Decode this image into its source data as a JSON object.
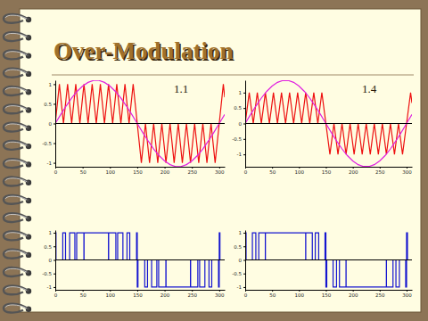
{
  "title": "Over-Modulation",
  "chart_data": [
    {
      "type": "line",
      "annotation": "1.1",
      "xlim": [
        0,
        310
      ],
      "ylim": [
        -1.1,
        1.1
      ],
      "xticks": [
        0,
        50,
        100,
        150,
        200,
        250,
        300
      ],
      "yticks": [
        -1,
        -0.5,
        0,
        0.5,
        1
      ],
      "series": [
        {
          "color": "#ee1010",
          "x": [
            0,
            7.5,
            15,
            22.5,
            30,
            37.5,
            45,
            52.5,
            60,
            67.5,
            75,
            82.5,
            90,
            97.5,
            105,
            112.5,
            120,
            127.5,
            135,
            142.5,
            150,
            157.5,
            165,
            172.5,
            180,
            187.5,
            195,
            202.5,
            210,
            217.5,
            225,
            232.5,
            240,
            247.5,
            255,
            262.5,
            270,
            277.5,
            285,
            292.5,
            300,
            307.5,
            310
          ],
          "values": [
            0,
            1,
            0,
            1,
            0,
            1,
            0,
            1,
            0,
            1,
            0,
            1,
            0,
            1,
            0,
            1,
            0,
            1,
            0,
            1,
            0,
            -1,
            0,
            -1,
            0,
            -1,
            0,
            -1,
            0,
            -1,
            0,
            -1,
            0,
            -1,
            0,
            -1,
            0,
            -1,
            0,
            -1,
            0,
            1,
            0.667
          ]
        },
        {
          "color": "#e020e0",
          "x": [
            0,
            10,
            20,
            30,
            40,
            50,
            60,
            70,
            80,
            90,
            100,
            110,
            120,
            130,
            140,
            150,
            160,
            170,
            180,
            190,
            200,
            210,
            220,
            230,
            240,
            250,
            260,
            270,
            280,
            290,
            300,
            310
          ],
          "values": [
            0,
            0.229,
            0.447,
            0.647,
            0.817,
            0.953,
            1.046,
            1.094,
            1.094,
            1.046,
            0.953,
            0.817,
            0.647,
            0.447,
            0.229,
            0,
            -0.229,
            -0.447,
            -0.647,
            -0.817,
            -0.953,
            -1.046,
            -1.094,
            -1.094,
            -1.046,
            -0.953,
            -0.817,
            -0.647,
            -0.447,
            -0.229,
            0,
            0.229
          ]
        }
      ]
    },
    {
      "type": "line",
      "annotation": "1.4",
      "xlim": [
        0,
        310
      ],
      "ylim": [
        -1.4,
        1.4
      ],
      "xticks": [
        0,
        50,
        100,
        150,
        200,
        250,
        300
      ],
      "yticks": [
        -1,
        -0.5,
        0,
        0.5,
        1
      ],
      "series": [
        {
          "color": "#ee1010",
          "x": [
            0,
            7.5,
            15,
            22.5,
            30,
            37.5,
            45,
            52.5,
            60,
            67.5,
            75,
            82.5,
            90,
            97.5,
            105,
            112.5,
            120,
            127.5,
            135,
            142.5,
            150,
            157.5,
            165,
            172.5,
            180,
            187.5,
            195,
            202.5,
            210,
            217.5,
            225,
            232.5,
            240,
            247.5,
            255,
            262.5,
            270,
            277.5,
            285,
            292.5,
            300,
            307.5,
            310
          ],
          "values": [
            0,
            1,
            0,
            1,
            0,
            1,
            0,
            1,
            0,
            1,
            0,
            1,
            0,
            1,
            0,
            1,
            0,
            1,
            0,
            1,
            0,
            -1,
            0,
            -1,
            0,
            -1,
            0,
            -1,
            0,
            -1,
            0,
            -1,
            0,
            -1,
            0,
            -1,
            0,
            -1,
            0,
            -1,
            0,
            1,
            0.667
          ]
        },
        {
          "color": "#e020e0",
          "x": [
            0,
            10,
            20,
            30,
            40,
            50,
            60,
            70,
            80,
            90,
            100,
            110,
            120,
            130,
            140,
            150,
            160,
            170,
            180,
            190,
            200,
            210,
            220,
            230,
            240,
            250,
            260,
            270,
            280,
            290,
            300,
            310
          ],
          "values": [
            0,
            0.291,
            0.569,
            0.823,
            1.04,
            1.212,
            1.332,
            1.392,
            1.392,
            1.332,
            1.212,
            1.04,
            0.823,
            0.569,
            0.291,
            0,
            -0.291,
            -0.569,
            -0.823,
            -1.04,
            -1.212,
            -1.332,
            -1.392,
            -1.392,
            -1.332,
            -1.212,
            -1.04,
            -0.823,
            -0.569,
            -0.291,
            0,
            0.291
          ]
        }
      ]
    },
    {
      "type": "line",
      "xlim": [
        0,
        310
      ],
      "ylim": [
        -1.1,
        1.1
      ],
      "xticks": [
        0,
        50,
        100,
        150,
        200,
        250,
        300
      ],
      "yticks": [
        -1,
        -0.5,
        0,
        0.5,
        1
      ],
      "series": [
        {
          "color": "#1414d0",
          "line_style": "step",
          "x": [
            0,
            1.29,
            13.71,
            18.74,
            26.26,
            35.83,
            39.17,
            52.35,
            52.65,
            97.35,
            97.65,
            110.83,
            114.17,
            123.74,
            131.26,
            136.29,
            148.71,
            150,
            151.29,
            163.71,
            168.74,
            176.26,
            185.83,
            189.17,
            202.35,
            202.65,
            247.35,
            247.65,
            260.83,
            264.17,
            273.74,
            281.26,
            286.29,
            298.71,
            300,
            301.29,
            310
          ],
          "values": [
            1,
            0,
            1,
            0,
            1,
            0,
            1,
            0,
            1,
            0,
            1,
            0,
            1,
            0,
            1,
            0,
            1,
            -1,
            0,
            -1,
            0,
            -1,
            0,
            -1,
            0,
            -1,
            0,
            -1,
            0,
            -1,
            0,
            -1,
            0,
            -1,
            1,
            0,
            0
          ]
        }
      ]
    },
    {
      "type": "line",
      "xlim": [
        0,
        310
      ],
      "ylim": [
        -1.1,
        1.1
      ],
      "xticks": [
        0,
        50,
        100,
        150,
        200,
        250,
        300
      ],
      "yticks": [
        -1,
        -0.5,
        0,
        0.5,
        1
      ],
      "series": [
        {
          "color": "#1414d0",
          "line_style": "step",
          "x": [
            0,
            1.64,
            13.36,
            19.77,
            25.23,
            37.42,
            37.58,
            112.42,
            112.58,
            124.77,
            130.23,
            136.64,
            148.36,
            150,
            151.64,
            163.36,
            169.77,
            175.23,
            187.42,
            187.58,
            262.42,
            262.58,
            274.77,
            280.23,
            286.64,
            298.36,
            300,
            301.64,
            310
          ],
          "values": [
            1,
            0,
            1,
            0,
            1,
            0,
            1,
            0,
            1,
            0,
            1,
            0,
            1,
            -1,
            0,
            -1,
            0,
            -1,
            0,
            -1,
            0,
            -1,
            0,
            -1,
            0,
            -1,
            1,
            0,
            0
          ]
        }
      ]
    }
  ]
}
